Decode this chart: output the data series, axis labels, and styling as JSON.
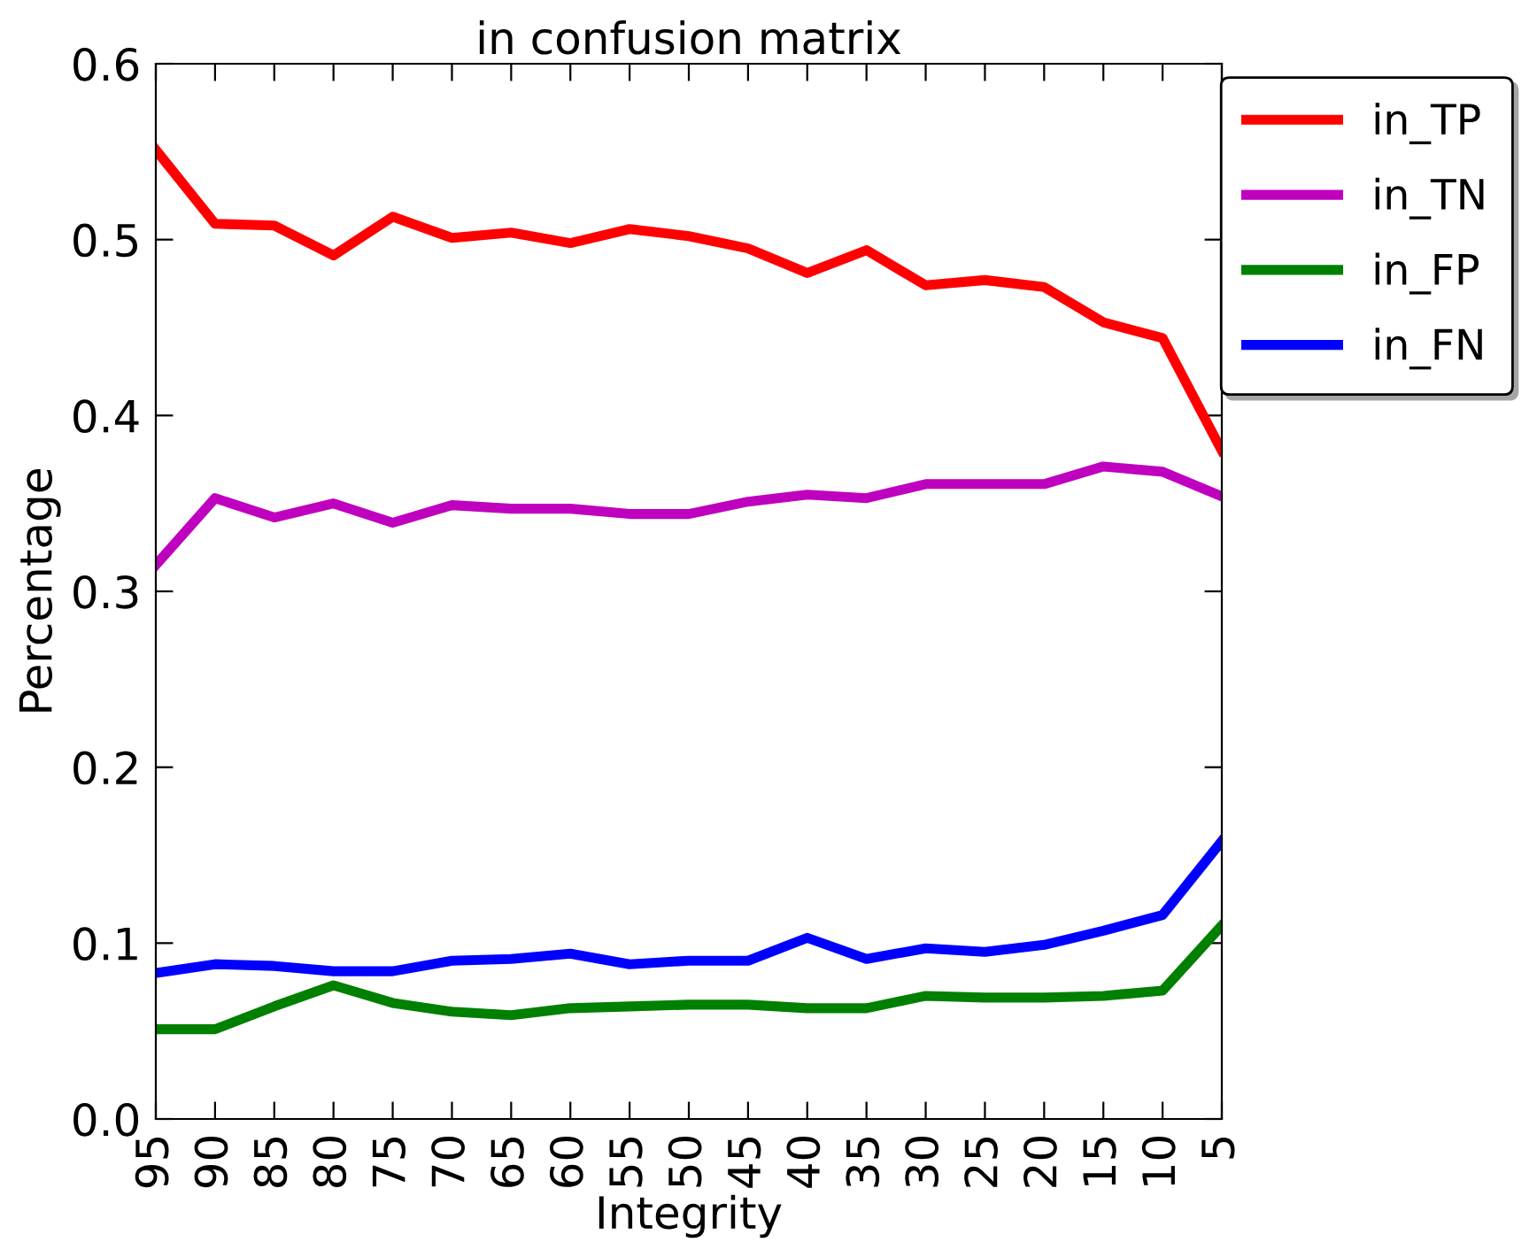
{
  "chart_data": {
    "type": "line",
    "title": "in confusion matrix",
    "xlabel": "Integrity",
    "ylabel": "Percentage",
    "x": [
      95,
      90,
      85,
      80,
      75,
      70,
      65,
      60,
      55,
      50,
      45,
      40,
      35,
      30,
      25,
      20,
      15,
      10,
      5
    ],
    "xlim": [
      95,
      5
    ],
    "xticks": [
      95,
      90,
      85,
      80,
      75,
      70,
      65,
      60,
      55,
      50,
      45,
      40,
      35,
      30,
      25,
      20,
      15,
      10,
      5
    ],
    "ylim": [
      0.0,
      0.6
    ],
    "yticks": [
      {
        "value": 0.0,
        "label": "0.0"
      },
      0.1,
      0.2,
      0.3,
      0.4,
      0.5,
      0.6
    ],
    "grid": false,
    "legend": "top right",
    "marker": "none",
    "line_style": "solid",
    "series": [
      {
        "name": "in_TP",
        "color": "#ff0000",
        "values": [
          0.551,
          0.509,
          0.508,
          0.491,
          0.513,
          0.501,
          0.504,
          0.498,
          0.506,
          0.502,
          0.495,
          0.481,
          0.494,
          0.474,
          0.477,
          0.473,
          0.453,
          0.444,
          0.38
        ]
      },
      {
        "name": "in_TN",
        "color": "#bf00bf",
        "values": [
          0.315,
          0.353,
          0.342,
          0.35,
          0.339,
          0.349,
          0.347,
          0.347,
          0.344,
          0.344,
          0.351,
          0.355,
          0.353,
          0.361,
          0.361,
          0.361,
          0.371,
          0.368,
          0.354
        ]
      },
      {
        "name": "in_FP",
        "color": "#008000",
        "values": [
          0.051,
          0.051,
          0.064,
          0.076,
          0.066,
          0.061,
          0.059,
          0.063,
          0.064,
          0.065,
          0.065,
          0.063,
          0.063,
          0.07,
          0.069,
          0.069,
          0.07,
          0.073,
          0.11
        ]
      },
      {
        "name": "in_FN",
        "color": "#0000ff",
        "values": [
          0.083,
          0.088,
          0.087,
          0.084,
          0.084,
          0.09,
          0.091,
          0.094,
          0.088,
          0.09,
          0.09,
          0.103,
          0.091,
          0.097,
          0.095,
          0.099,
          0.107,
          0.116,
          0.158
        ]
      }
    ]
  }
}
